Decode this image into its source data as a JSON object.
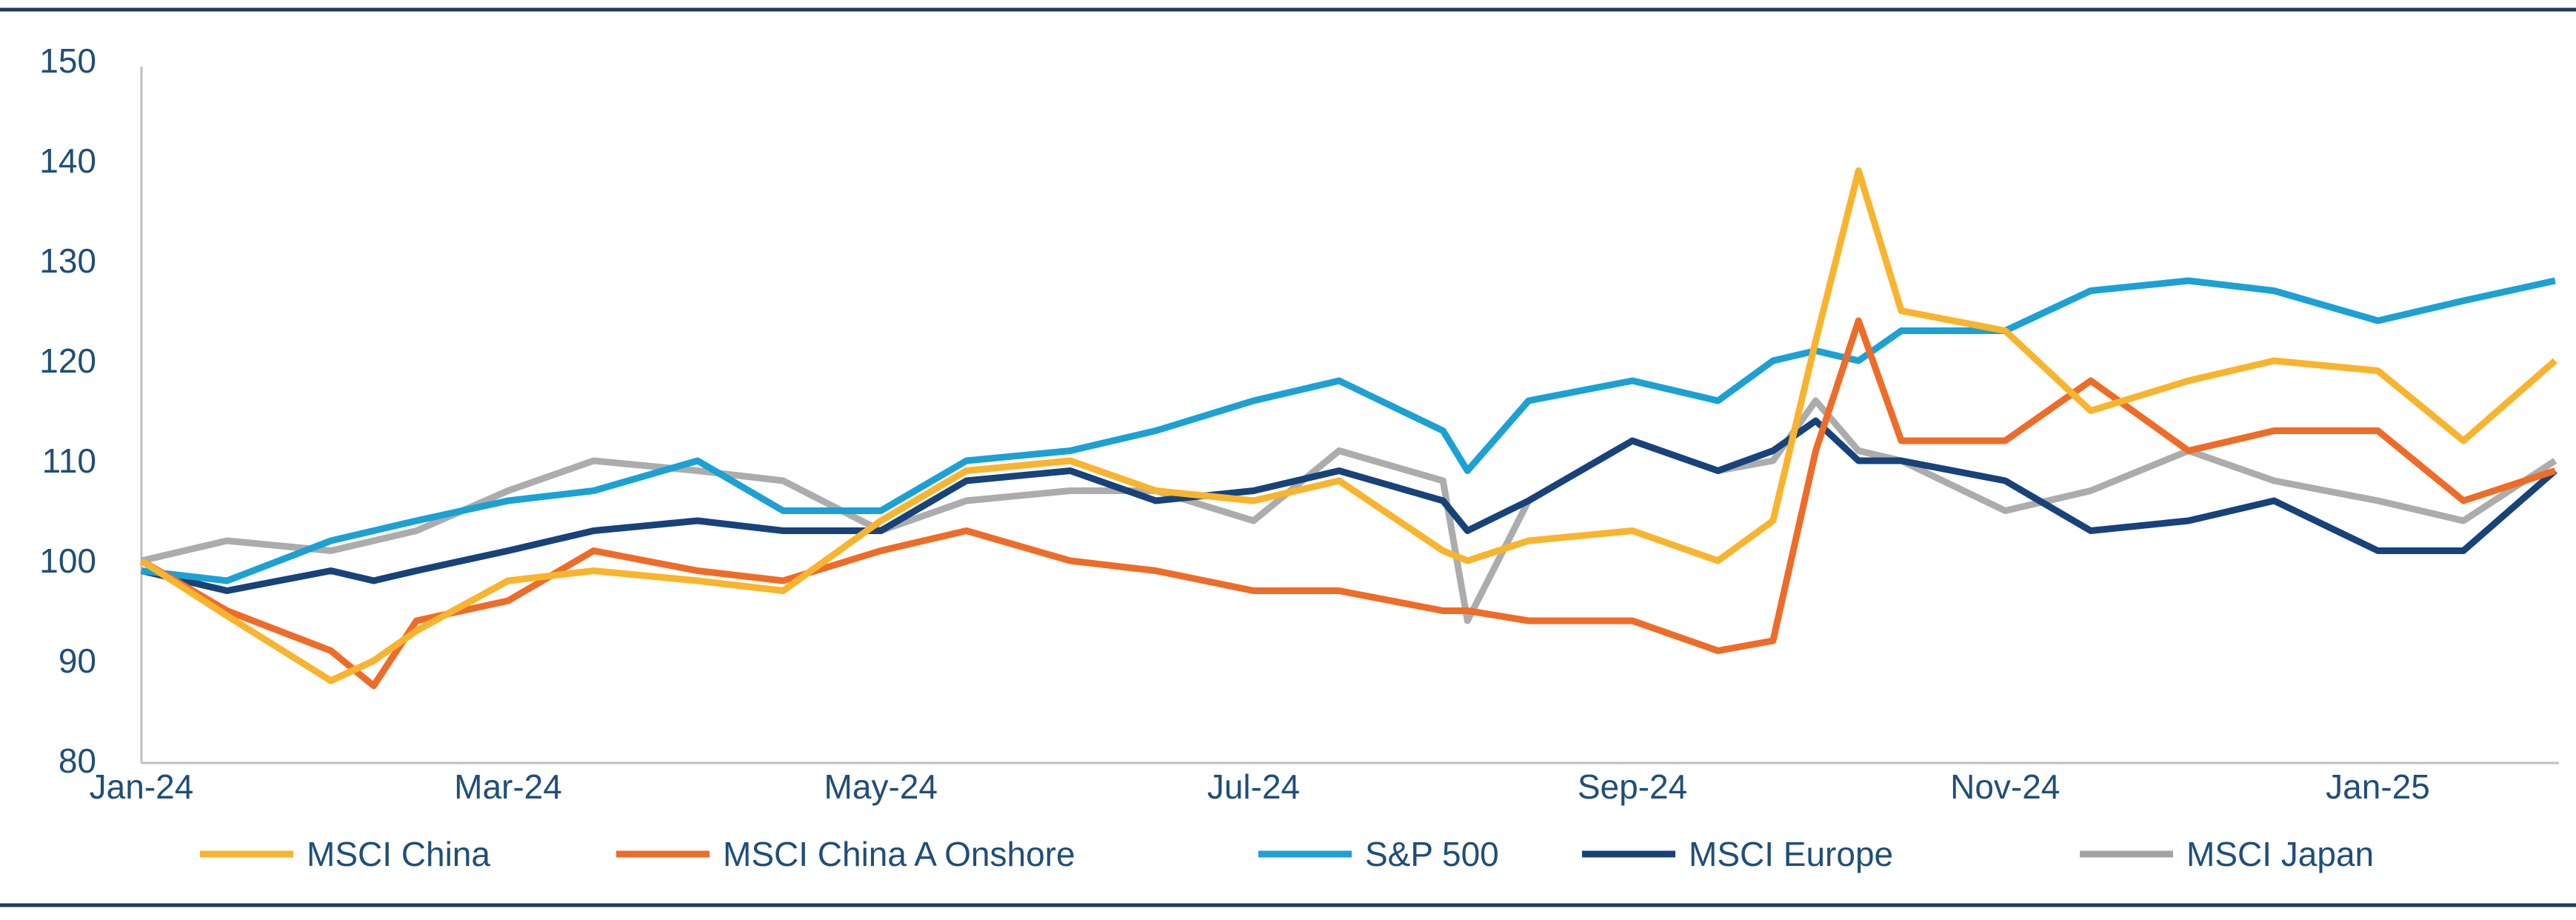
{
  "chart_data": {
    "type": "line",
    "title": "",
    "xlabel": "",
    "ylabel": "",
    "ylim": [
      80,
      150
    ],
    "yticks": [
      "80",
      "90",
      "100",
      "110",
      "120",
      "130",
      "140",
      "150"
    ],
    "xticks": [
      {
        "label": "Jan-24",
        "date": "2024-01-01"
      },
      {
        "label": "Mar-24",
        "date": "2024-03-01"
      },
      {
        "label": "May-24",
        "date": "2024-05-01"
      },
      {
        "label": "Jul-24",
        "date": "2024-07-01"
      },
      {
        "label": "Sep-24",
        "date": "2024-09-01"
      },
      {
        "label": "Nov-24",
        "date": "2024-11-01"
      },
      {
        "label": "Jan-25",
        "date": "2025-01-01"
      }
    ],
    "xlim": [
      "2024-01-01",
      "2025-01-30"
    ],
    "grid": false,
    "legend": "bottom",
    "x": [
      "2024-01-01",
      "2024-01-15",
      "2024-02-01",
      "2024-02-08",
      "2024-02-15",
      "2024-03-01",
      "2024-03-15",
      "2024-04-01",
      "2024-04-15",
      "2024-05-01",
      "2024-05-15",
      "2024-06-01",
      "2024-06-15",
      "2024-07-01",
      "2024-07-15",
      "2024-08-01",
      "2024-08-05",
      "2024-08-15",
      "2024-09-01",
      "2024-09-15",
      "2024-09-24",
      "2024-10-01",
      "2024-10-08",
      "2024-10-15",
      "2024-11-01",
      "2024-11-15",
      "2024-12-01",
      "2024-12-15",
      "2025-01-01",
      "2025-01-15",
      "2025-01-30"
    ],
    "series": [
      {
        "name": "MSCI China",
        "color": "#F9B42D",
        "values": [
          100,
          94.5,
          88,
          90,
          93,
          98,
          99,
          98,
          97,
          104,
          109,
          110,
          107,
          106,
          108,
          101,
          100,
          102,
          103,
          100,
          104,
          122,
          139,
          125,
          123,
          115,
          118,
          120,
          119,
          112,
          120
        ]
      },
      {
        "name": "MSCI China A Onshore",
        "color": "#EE6C28",
        "values": [
          100,
          95,
          91,
          87.5,
          94,
          96,
          101,
          99,
          98,
          101,
          103,
          100,
          99,
          97,
          97,
          95,
          95,
          94,
          94,
          91,
          92,
          111,
          124,
          112,
          112,
          118,
          111,
          113,
          113,
          106,
          109
        ]
      },
      {
        "name": "S&P 500",
        "color": "#1BA1D4",
        "values": [
          99,
          98,
          102,
          103,
          104,
          106,
          107,
          110,
          105,
          105,
          110,
          111,
          113,
          116,
          118,
          113,
          109,
          116,
          118,
          116,
          120,
          121,
          120,
          123,
          123,
          127,
          128,
          127,
          124,
          126,
          128
        ]
      },
      {
        "name": "MSCI Europe",
        "color": "#17427A",
        "values": [
          99,
          97,
          99,
          98,
          99,
          101,
          103,
          104,
          103,
          103,
          108,
          109,
          106,
          107,
          109,
          106,
          103,
          106,
          112,
          109,
          111,
          114,
          110,
          110,
          108,
          103,
          104,
          106,
          101,
          101,
          109
        ]
      },
      {
        "name": "MSCI Japan",
        "color": "#A3A3A3",
        "values": [
          100,
          102,
          101,
          102,
          103,
          107,
          110,
          109,
          108,
          103,
          106,
          107,
          107,
          104,
          111,
          108,
          94,
          106,
          112,
          109,
          110,
          116,
          111,
          110,
          105,
          107,
          111,
          108,
          106,
          104,
          110
        ]
      }
    ]
  }
}
